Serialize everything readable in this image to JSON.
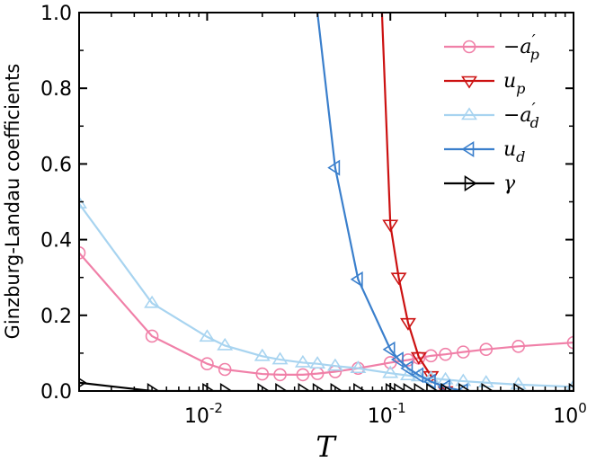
{
  "chart_data": {
    "type": "line",
    "xscale": "log",
    "xlim": [
      0.002,
      1.0
    ],
    "ylim": [
      0.0,
      1.0
    ],
    "xlabel": "T",
    "ylabel": "Ginzburg-Landau coefficients",
    "xticks": [
      {
        "value": 0.01,
        "base": "10",
        "exp": "-2"
      },
      {
        "value": 0.1,
        "base": "10",
        "exp": "-1"
      },
      {
        "value": 1.0,
        "base": "10",
        "exp": "0"
      }
    ],
    "yticks": [
      {
        "value": 0.0,
        "label": "0.0"
      },
      {
        "value": 0.2,
        "label": "0.2"
      },
      {
        "value": 0.4,
        "label": "0.4"
      },
      {
        "value": 0.6,
        "label": "0.6"
      },
      {
        "value": 0.8,
        "label": "0.8"
      },
      {
        "value": 1.0,
        "label": "1.0"
      }
    ],
    "legend_position": "top-right",
    "series": [
      {
        "id": "neg-a-p",
        "name": "−a′p",
        "legend": {
          "base": "−a",
          "prime": "′",
          "sub": "p"
        },
        "color": "#f080a8",
        "marker": "circle",
        "x": [
          0.002,
          0.005,
          0.01,
          0.0125,
          0.02,
          0.025,
          0.0333,
          0.04,
          0.05,
          0.0667,
          0.1,
          0.125,
          0.1429,
          0.1667,
          0.2,
          0.25,
          0.3333,
          0.5,
          1.0
        ],
        "y": [
          0.365,
          0.145,
          0.072,
          0.057,
          0.045,
          0.043,
          0.043,
          0.046,
          0.051,
          0.06,
          0.075,
          0.082,
          0.087,
          0.093,
          0.097,
          0.103,
          0.11,
          0.118,
          0.128
        ]
      },
      {
        "id": "u-p",
        "name": "up",
        "legend": {
          "base": "u",
          "prime": "",
          "sub": "p"
        },
        "color": "#cc1111",
        "marker": "triangle-down",
        "x": [
          0.09,
          0.1,
          0.1111,
          0.125,
          0.1429,
          0.1667,
          0.2
        ],
        "y": [
          1.0,
          0.44,
          0.3,
          0.18,
          0.09,
          0.04,
          0.0
        ]
      },
      {
        "id": "neg-a-d",
        "name": "−a′d",
        "legend": {
          "base": "−a",
          "prime": "′",
          "sub": "d"
        },
        "color": "#a8d4f0",
        "marker": "triangle-up",
        "x": [
          0.002,
          0.005,
          0.01,
          0.0125,
          0.02,
          0.025,
          0.0333,
          0.04,
          0.05,
          0.0667,
          0.1,
          0.125,
          0.1429,
          0.1667,
          0.2,
          0.25,
          0.3333,
          0.5,
          1.0
        ],
        "y": [
          0.495,
          0.232,
          0.143,
          0.12,
          0.092,
          0.083,
          0.075,
          0.072,
          0.066,
          0.06,
          0.047,
          0.041,
          0.038,
          0.034,
          0.03,
          0.026,
          0.022,
          0.017,
          0.011
        ]
      },
      {
        "id": "u-d",
        "name": "ud",
        "legend": {
          "base": "u",
          "prime": "",
          "sub": "d"
        },
        "color": "#3a7fcc",
        "marker": "triangle-left",
        "x": [
          0.04,
          0.05,
          0.0667,
          0.1,
          0.1111,
          0.125,
          0.1429,
          0.1667,
          0.2,
          0.25
        ],
        "y": [
          1.0,
          0.59,
          0.295,
          0.11,
          0.083,
          0.06,
          0.042,
          0.025,
          0.01,
          0.0
        ]
      },
      {
        "id": "gamma",
        "name": "γ",
        "legend": {
          "base": "γ",
          "prime": "",
          "sub": ""
        },
        "color": "#000000",
        "marker": "triangle-right",
        "x": [
          0.002,
          0.005,
          0.01,
          0.0125,
          0.02,
          0.025,
          0.0333,
          0.04,
          0.05,
          0.0667,
          0.1,
          0.1111,
          0.125,
          0.1429,
          0.1667,
          0.2,
          0.25,
          0.3333,
          0.5,
          1.0
        ],
        "y": [
          0.022,
          0.0,
          0.0,
          0.0,
          0.0,
          0.0,
          0.0,
          0.0,
          0.0,
          0.0,
          0.0,
          0.0,
          0.0,
          0.0,
          0.0,
          0.0,
          0.0,
          0.0,
          0.0,
          0.0
        ]
      }
    ]
  }
}
